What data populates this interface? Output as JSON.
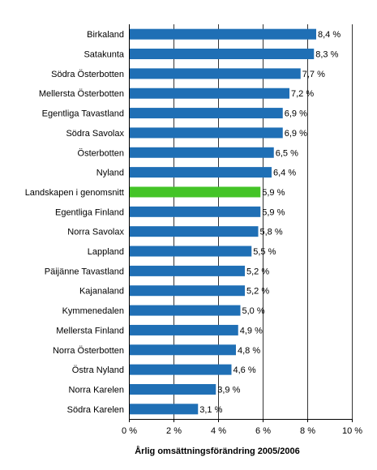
{
  "chart_data": {
    "type": "bar",
    "orientation": "horizontal",
    "categories": [
      "Birkaland",
      "Satakunta",
      "Södra Österbotten",
      "Mellersta Österbotten",
      "Egentliga Tavastland",
      "Södra Savolax",
      "Österbotten",
      "Nyland",
      "Landskapen i genomsnitt",
      "Egentliga Finland",
      "Norra Savolax",
      "Lappland",
      "Päijänne Tavastland",
      "Kajanaland",
      "Kymmenedalen",
      "Mellersta Finland",
      "Norra Österbotten",
      "Östra Nyland",
      "Norra Karelen",
      "Södra Karelen"
    ],
    "values": [
      8.4,
      8.3,
      7.7,
      7.2,
      6.9,
      6.9,
      6.5,
      6.4,
      5.9,
      5.9,
      5.8,
      5.5,
      5.2,
      5.2,
      5.0,
      4.9,
      4.8,
      4.6,
      3.9,
      3.1
    ],
    "value_labels": [
      "8,4 %",
      "8,3 %",
      "7,7 %",
      "7,2 %",
      "6,9 %",
      "6,9 %",
      "6,5 %",
      "6,4 %",
      "5,9 %",
      "5,9 %",
      "5,8 %",
      "5,5 %",
      "5,2 %",
      "5,2 %",
      "5,0 %",
      "4,9 %",
      "4,8 %",
      "4,6 %",
      "3,9 %",
      "3,1 %"
    ],
    "highlight_index": 8,
    "xlabel": "Årlig omsättningsförändring 2005/2006",
    "ylabel": "",
    "title": "",
    "xlim": [
      0,
      10
    ],
    "x_ticks": [
      0,
      2,
      4,
      6,
      8,
      10
    ],
    "x_tick_labels": [
      "0 %",
      "2 %",
      "4 %",
      "6 %",
      "8 %",
      "10 %"
    ],
    "grid": true,
    "colors": {
      "bar": "#1F6FB5",
      "highlight": "#44C427",
      "grid": "#000000"
    }
  }
}
